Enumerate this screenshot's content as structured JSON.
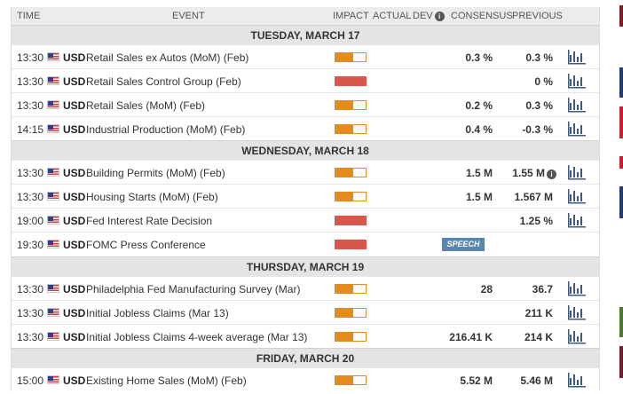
{
  "header": {
    "time": "TIME",
    "event": "EVENT",
    "impact": "IMPACT",
    "actual": "ACTUAL",
    "dev": "DEV",
    "consensus": "CONSENSUS",
    "previous": "PREVIOUS"
  },
  "days": [
    {
      "label": "TUESDAY, MARCH 17",
      "events": [
        {
          "time": "13:30",
          "currency": "USD",
          "name": "Retail Sales ex Autos (MoM) (Feb)",
          "impact": "medium",
          "consensus": "0.3 %",
          "previous": "0.3 %"
        },
        {
          "time": "13:30",
          "currency": "USD",
          "name": "Retail Sales Control Group (Feb)",
          "impact": "high",
          "consensus": "",
          "previous": "0 %"
        },
        {
          "time": "13:30",
          "currency": "USD",
          "name": "Retail Sales (MoM) (Feb)",
          "impact": "medium",
          "consensus": "0.2 %",
          "previous": "0.3 %"
        },
        {
          "time": "14:15",
          "currency": "USD",
          "name": "Industrial Production (MoM) (Feb)",
          "impact": "medium",
          "consensus": "0.4 %",
          "previous": "-0.3 %"
        }
      ]
    },
    {
      "label": "WEDNESDAY, MARCH 18",
      "events": [
        {
          "time": "13:30",
          "currency": "USD",
          "name": "Building Permits (MoM) (Feb)",
          "impact": "medium",
          "consensus": "1.5 M",
          "previous": "1.55 M"
        },
        {
          "time": "13:30",
          "currency": "USD",
          "name": "Housing Starts (MoM) (Feb)",
          "impact": "medium",
          "consensus": "1.5 M",
          "previous": "1.567 M"
        },
        {
          "time": "19:00",
          "currency": "USD",
          "name": "Fed Interest Rate Decision",
          "impact": "high",
          "consensus": "",
          "previous": "1.25 %"
        },
        {
          "time": "19:30",
          "currency": "USD",
          "name": "FOMC Press Conference",
          "impact": "high",
          "consensus": "",
          "previous": "",
          "badge": "SPEECH"
        }
      ]
    },
    {
      "label": "THURSDAY, MARCH 19",
      "events": [
        {
          "time": "13:30",
          "currency": "USD",
          "name": "Philadelphia Fed Manufacturing Survey (Mar)",
          "impact": "medium",
          "consensus": "28",
          "previous": "36.7"
        },
        {
          "time": "13:30",
          "currency": "USD",
          "name": "Initial Jobless Claims (Mar 13)",
          "impact": "medium",
          "consensus": "",
          "previous": "211 K"
        },
        {
          "time": "13:30",
          "currency": "USD",
          "name": "Initial Jobless Claims 4-week average (Mar 13)",
          "impact": "medium",
          "consensus": "216.41 K",
          "previous": "214 K"
        }
      ]
    },
    {
      "label": "FRIDAY, MARCH 20",
      "events": [
        {
          "time": "15:00",
          "currency": "USD",
          "name": "Existing Home Sales (MoM) (Feb)",
          "impact": "medium",
          "consensus": "5.52 M",
          "previous": "5.46 M"
        }
      ]
    }
  ],
  "icons": {
    "info": "info-icon",
    "chart": "bar-chart-icon",
    "flag": "us-flag-icon"
  },
  "colors": {
    "impact_medium": "#e48b1f",
    "impact_high": "#d8574a",
    "speech_badge": "#5a86ad",
    "header_bg": "#ececec",
    "day_bg": "#e4e4e4",
    "chart_icon": "#3d5a80"
  }
}
